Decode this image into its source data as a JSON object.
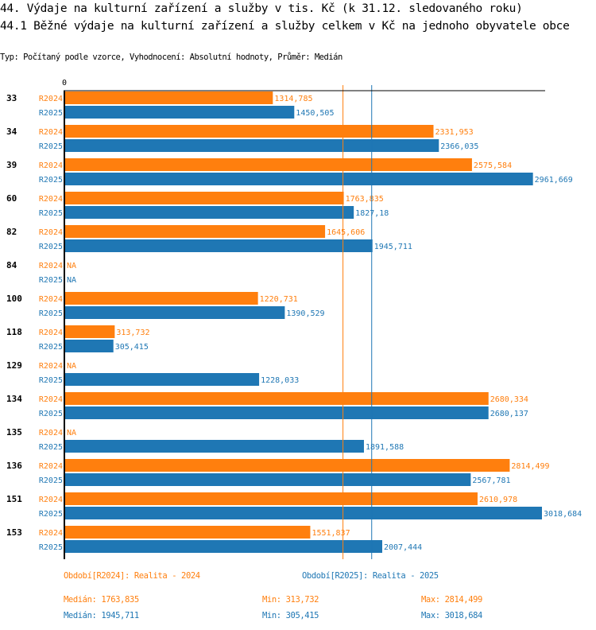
{
  "header": {
    "title": "44. Výdaje na kulturní zařízení a služby v tis. Kč (k 31.12. sledovaného roku)",
    "subtitle": "44.1 Běžné výdaje na kulturní zařízení a služby celkem v Kč na jednoho obyvatele obce",
    "info": "Typ: Počítaný podle vzorce, Vyhodnocení: Absolutní hodnoty, Průměr: Medián"
  },
  "colors": {
    "R2024": "#ff7f0e",
    "R2025": "#1f77b4"
  },
  "chart_data": {
    "type": "bar",
    "orientation": "horizontal",
    "title": "44.1 Běžné výdaje na kulturní zařízení a služby celkem v Kč na jednoho obyvatele obce",
    "x_tick_labels": [
      "0"
    ],
    "xlim": [
      0,
      3018.684
    ],
    "categories": [
      "33",
      "34",
      "39",
      "60",
      "82",
      "84",
      "100",
      "118",
      "129",
      "134",
      "135",
      "136",
      "151",
      "153"
    ],
    "series": [
      {
        "name": "R2024",
        "values": [
          1314.785,
          2331.953,
          2575.584,
          1763.835,
          1645.606,
          null,
          1220.731,
          313.732,
          null,
          2680.334,
          null,
          2814.499,
          2610.978,
          1551.837
        ],
        "labels": [
          "1314,785",
          "2331,953",
          "2575,584",
          "1763,835",
          "1645,606",
          "NA",
          "1220,731",
          "313,732",
          "NA",
          "2680,334",
          "NA",
          "2814,499",
          "2610,978",
          "1551,837"
        ]
      },
      {
        "name": "R2025",
        "values": [
          1450.505,
          2366.035,
          2961.669,
          1827.18,
          1945.711,
          null,
          1390.529,
          305.415,
          1228.033,
          2680.137,
          1891.588,
          2567.781,
          3018.684,
          2007.444
        ],
        "labels": [
          "1450,505",
          "2366,035",
          "2961,669",
          "1827,18",
          "1945,711",
          "NA",
          "1390,529",
          "305,415",
          "1228,033",
          "2680,137",
          "1891,588",
          "2567,781",
          "3018,684",
          "2007,444"
        ]
      }
    ],
    "reference_lines": [
      {
        "series": "R2024",
        "type": "median",
        "value": 1763.835
      },
      {
        "series": "R2025",
        "type": "median",
        "value": 1945.711
      }
    ]
  },
  "legend": {
    "r2024": "Období[R2024]: Realita - 2024",
    "r2025": "Období[R2025]: Realita - 2025"
  },
  "stats": {
    "r2024": {
      "median": "Medián: 1763,835",
      "min": "Min: 313,732",
      "max": "Max: 2814,499"
    },
    "r2025": {
      "median": "Medián: 1945,711",
      "min": "Min: 305,415",
      "max": "Max: 3018,684"
    }
  }
}
